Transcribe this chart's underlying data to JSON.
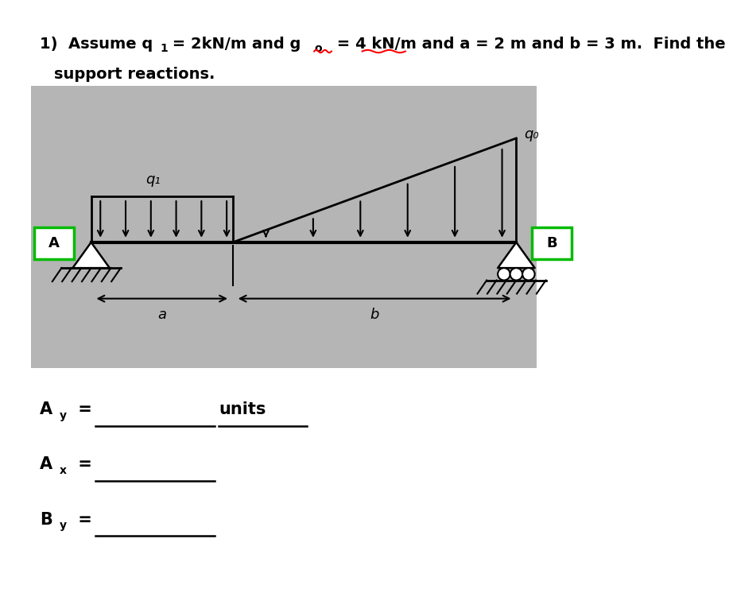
{
  "bg_color": "#b8b8b8",
  "beam_color": "#000000",
  "q1_label": "q₁",
  "q0_label": "q₀",
  "a_label": "a",
  "b_label": "b",
  "A_label": "A",
  "B_label": "B",
  "green_box_color": "#00bb00",
  "title_part1": "1)  Assume q",
  "title_sub1": "1",
  "title_part2": " = 2kN/m and g",
  "title_sub2": "o",
  "title_part3": " = 4 kN/m and a = 2 m and b = 3 m.  Find the",
  "title_line2": "support reactions.",
  "ay_label": "A",
  "ay_sub": "y",
  "ax_label": "A",
  "ax_sub": "x",
  "by_label": "B",
  "by_sub": "y",
  "units_text": "units"
}
